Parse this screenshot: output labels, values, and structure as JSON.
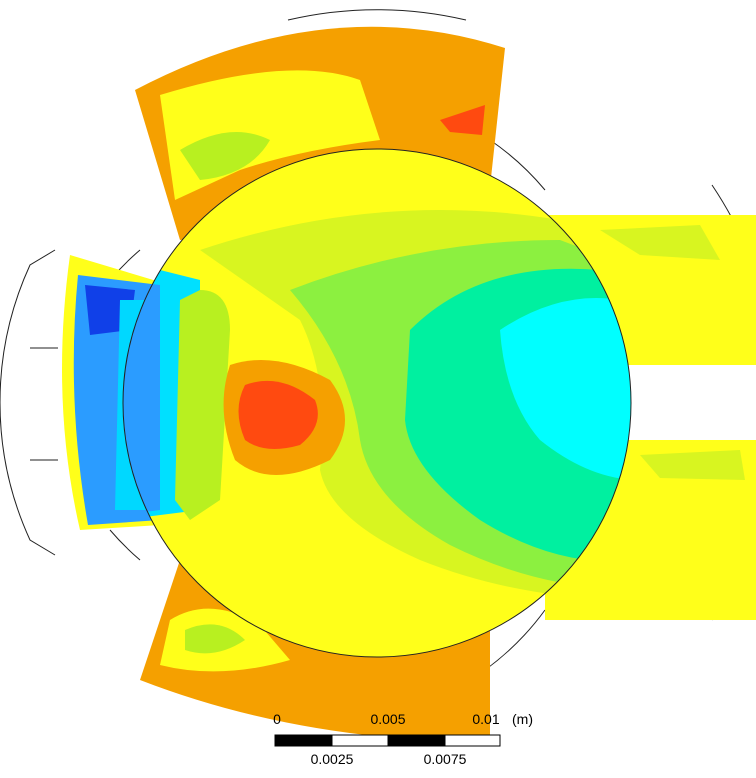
{
  "scale_bar": {
    "top_labels": [
      "0",
      "0.005",
      "0.01"
    ],
    "unit": "(m)",
    "bottom_labels": [
      "0.0025",
      "0.0075"
    ]
  }
}
